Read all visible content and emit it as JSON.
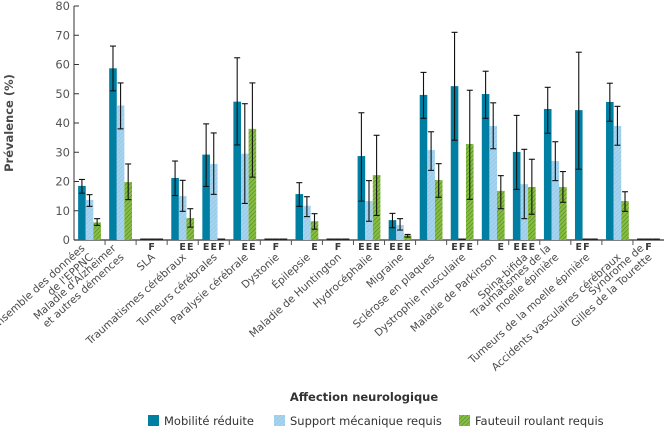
{
  "chart_data": {
    "type": "bar",
    "ylabel": "Prévalence (%)",
    "xlabel": "Affection neurologique",
    "ylim": [
      0,
      80
    ],
    "yticks": [
      0,
      10,
      20,
      30,
      40,
      50,
      60,
      70,
      80
    ],
    "grid": false,
    "legend_placement": "bottom",
    "series": [
      {
        "name": "Mobilité réduite",
        "color": "#007fa3"
      },
      {
        "name": "Support mécanique requis",
        "color": "#9fd0ec"
      },
      {
        "name": "Fauteuil roulant requis",
        "color": "#7ab640"
      }
    ],
    "groups": [
      {
        "label": [
          "Ensemble des données",
          "de l'EPPNC"
        ],
        "values": [
          18.5,
          13.7,
          6.0
        ],
        "err": [
          [
            16.0,
            20.7
          ],
          [
            11.5,
            15.5
          ],
          [
            5.0,
            7.3
          ]
        ],
        "annot": [
          "",
          "",
          ""
        ]
      },
      {
        "label": [
          "Maladie d'Alzheimer",
          "et autres démences"
        ],
        "values": [
          58.7,
          46.0,
          19.8
        ],
        "err": [
          [
            51.0,
            66.3
          ],
          [
            38.0,
            53.7
          ],
          [
            13.8,
            26.0
          ]
        ],
        "annot": [
          "",
          "",
          ""
        ]
      },
      {
        "label": [
          "SLA"
        ],
        "values": [
          null,
          null,
          null
        ],
        "err": [
          null,
          null,
          null
        ],
        "annot": [
          "",
          "F",
          ""
        ]
      },
      {
        "label": [
          "Traumatismes cérébraux"
        ],
        "values": [
          21.2,
          15.0,
          7.5
        ],
        "err": [
          [
            15.2,
            27.0
          ],
          [
            9.8,
            20.4
          ],
          [
            4.4,
            10.7
          ]
        ],
        "annot": [
          "",
          "E",
          "E"
        ]
      },
      {
        "label": [
          "Tumeurs cérébrales"
        ],
        "values": [
          29.2,
          26.0,
          null
        ],
        "err": [
          [
            18.3,
            39.7
          ],
          [
            15.6,
            36.6
          ],
          null
        ],
        "annot": [
          "E",
          "E",
          "F"
        ]
      },
      {
        "label": [
          "Paralysie cérébrale"
        ],
        "values": [
          47.3,
          29.5,
          38.0
        ],
        "err": [
          [
            32.5,
            62.3
          ],
          [
            12.5,
            46.6
          ],
          [
            21.5,
            53.7
          ]
        ],
        "annot": [
          "",
          "E",
          "E"
        ]
      },
      {
        "label": [
          "Dystonie"
        ],
        "values": [
          null,
          null,
          null
        ],
        "err": [
          null,
          null,
          null
        ],
        "annot": [
          "",
          "F",
          ""
        ]
      },
      {
        "label": [
          "Épilepsie"
        ],
        "values": [
          15.7,
          11.7,
          6.4
        ],
        "err": [
          [
            11.5,
            19.6
          ],
          [
            8.0,
            14.8
          ],
          [
            3.7,
            9.0
          ]
        ],
        "annot": [
          "",
          "",
          "E"
        ]
      },
      {
        "label": [
          "Maladie de Huntington"
        ],
        "values": [
          null,
          null,
          null
        ],
        "err": [
          null,
          null,
          null
        ],
        "annot": [
          "",
          "F",
          ""
        ]
      },
      {
        "label": [
          "Hydrocéphalie"
        ],
        "values": [
          28.7,
          13.3,
          22.2
        ],
        "err": [
          [
            13.3,
            43.5
          ],
          [
            6.4,
            20.3
          ],
          [
            8.4,
            35.8
          ]
        ],
        "annot": [
          "E",
          "E",
          "E"
        ]
      },
      {
        "label": [
          "Migraine"
        ],
        "values": [
          6.8,
          5.1,
          1.6
        ],
        "err": [
          [
            4.2,
            9.1
          ],
          [
            3.4,
            7.3
          ],
          [
            1.0,
            1.9
          ]
        ],
        "annot": [
          "E",
          "E",
          "E"
        ]
      },
      {
        "label": [
          "Sclérose en plaques"
        ],
        "values": [
          49.6,
          30.8,
          20.5
        ],
        "err": [
          [
            41.6,
            57.3
          ],
          [
            23.8,
            37.0
          ],
          [
            14.6,
            26.1
          ]
        ],
        "annot": [
          "",
          "",
          ""
        ]
      },
      {
        "label": [
          "Dystrophie musculaire"
        ],
        "values": [
          52.6,
          null,
          32.8
        ],
        "err": [
          [
            34.1,
            71.0
          ],
          null,
          [
            13.9,
            51.2
          ]
        ],
        "annot": [
          "E",
          "F",
          "E"
        ]
      },
      {
        "label": [
          "Maladie de Parkinson"
        ],
        "values": [
          49.9,
          39.0,
          16.8
        ],
        "err": [
          [
            41.6,
            57.7
          ],
          [
            31.2,
            46.9
          ],
          [
            10.7,
            22.0
          ]
        ],
        "annot": [
          "",
          "",
          "E"
        ]
      },
      {
        "label": [
          "Spina-bifida"
        ],
        "values": [
          30.1,
          19.1,
          18.1
        ],
        "err": [
          [
            17.3,
            42.6
          ],
          [
            7.3,
            31.0
          ],
          [
            8.8,
            27.6
          ]
        ],
        "annot": [
          "E",
          "E",
          "E"
        ]
      },
      {
        "label": [
          "Traumatismes de la",
          "moelle épinière"
        ],
        "values": [
          44.8,
          27.0,
          18.1
        ],
        "err": [
          [
            36.5,
            52.2
          ],
          [
            20.3,
            33.6
          ],
          [
            12.9,
            23.4
          ]
        ],
        "annot": [
          "",
          "",
          ""
        ]
      },
      {
        "label": [
          "Tumeurs de la moelle épinière"
        ],
        "values": [
          44.4,
          null,
          null
        ],
        "err": [
          [
            24.2,
            64.2
          ],
          null,
          null
        ],
        "annot": [
          "E",
          "F",
          ""
        ]
      },
      {
        "label": [
          "Accidents vasculaires cérébraux"
        ],
        "values": [
          47.2,
          39.0,
          13.3
        ],
        "err": [
          [
            40.6,
            53.6
          ],
          [
            32.4,
            45.7
          ],
          [
            9.8,
            16.5
          ]
        ],
        "annot": [
          "",
          "",
          ""
        ]
      },
      {
        "label": [
          "Syndrome de",
          "Gilles de la Tourette"
        ],
        "values": [
          null,
          null,
          null
        ],
        "err": [
          null,
          null,
          null
        ],
        "annot": [
          "",
          "F",
          ""
        ]
      }
    ]
  }
}
